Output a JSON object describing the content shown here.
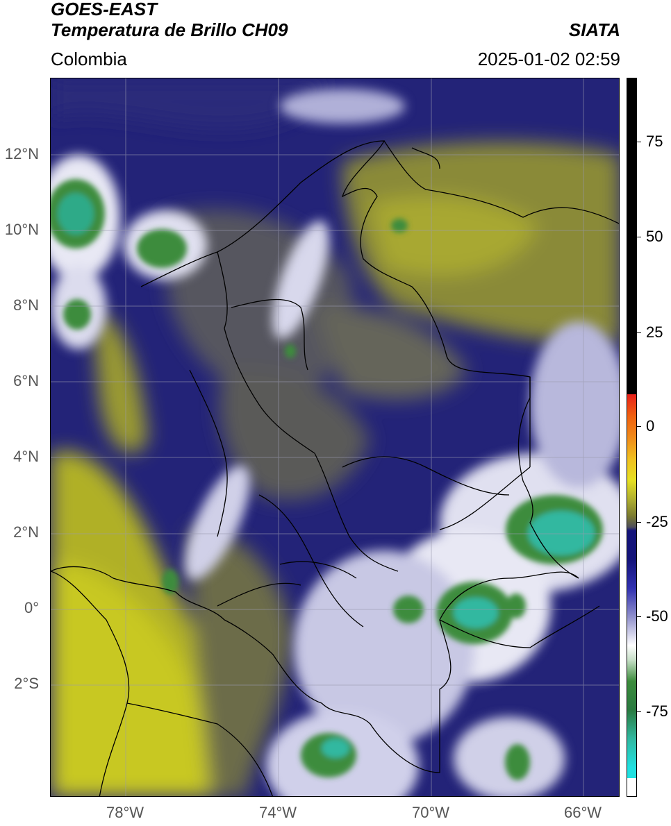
{
  "header": {
    "satellite": "GOES-EAST",
    "product": "Temperatura de Brillo CH09",
    "organization": "SIATA",
    "region": "Colombia",
    "timestamp": "2025-01-02 02:59"
  },
  "map": {
    "lat_ticks": [
      "12°N",
      "10°N",
      "8°N",
      "6°N",
      "4°N",
      "2°N",
      "0°",
      "2°S"
    ],
    "lon_ticks": [
      "78°W",
      "74°W",
      "70°W",
      "66°W"
    ]
  },
  "colorbar": {
    "tick_labels": [
      "75",
      "50",
      "25",
      "0",
      "-25",
      "-50",
      "-75"
    ],
    "colors": {
      "black": "#000000",
      "red": "#e8201a",
      "orange": "#f08a1a",
      "yellow": "#e6e022",
      "olive": "#7a7a30",
      "navy": "#14147a",
      "blue": "#3030b0",
      "white": "#ffffff",
      "green": "#3c8c3c",
      "teal": "#30b8a0",
      "cyan": "#20e0e0"
    }
  }
}
